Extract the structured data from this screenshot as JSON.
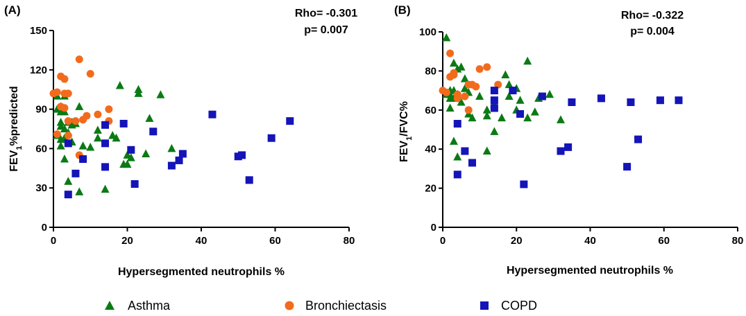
{
  "chart_data": [
    {
      "type": "scatter",
      "panel_label": "(A)",
      "annotation_rho": "Rho= -0.301",
      "annotation_p": "p= 0.007",
      "xlabel": "Hypersegmented neutrophils %",
      "ylabel_main": "FEV",
      "ylabel_sub": "1",
      "ylabel_rest": "%predicted",
      "xlim": [
        0,
        80
      ],
      "ylim": [
        0,
        150
      ],
      "xticks": [
        0,
        20,
        40,
        60,
        80
      ],
      "yticks": [
        0,
        30,
        60,
        90,
        120,
        150
      ],
      "series": [
        {
          "name": "Asthma",
          "points": [
            [
              1,
              70
            ],
            [
              1,
              90
            ],
            [
              1,
              100
            ],
            [
              2,
              62
            ],
            [
              2,
              67
            ],
            [
              2,
              77
            ],
            [
              2,
              80
            ],
            [
              2,
              88
            ],
            [
              2,
              92
            ],
            [
              3,
              52
            ],
            [
              3,
              68
            ],
            [
              3,
              75
            ],
            [
              3,
              88
            ],
            [
              3,
              100
            ],
            [
              4,
              35
            ],
            [
              4,
              72
            ],
            [
              4,
              80
            ],
            [
              5,
              65
            ],
            [
              5,
              78
            ],
            [
              5,
              80
            ],
            [
              6,
              79
            ],
            [
              7,
              27
            ],
            [
              7,
              92
            ],
            [
              8,
              62
            ],
            [
              10,
              61
            ],
            [
              12,
              68
            ],
            [
              12,
              74
            ],
            [
              14,
              29
            ],
            [
              16,
              70
            ],
            [
              17,
              68
            ],
            [
              18,
              108
            ],
            [
              19,
              48
            ],
            [
              20,
              48
            ],
            [
              20,
              55
            ],
            [
              21,
              53
            ],
            [
              23,
              102
            ],
            [
              23,
              105
            ],
            [
              25,
              56
            ],
            [
              26,
              83
            ],
            [
              29,
              101
            ],
            [
              32,
              60
            ]
          ]
        },
        {
          "name": "Bronchiectasis",
          "points": [
            [
              0,
              102
            ],
            [
              1,
              71
            ],
            [
              1,
              103
            ],
            [
              2,
              92
            ],
            [
              2,
              115
            ],
            [
              3,
              91
            ],
            [
              3,
              113
            ],
            [
              3,
              102
            ],
            [
              4,
              70
            ],
            [
              4,
              81
            ],
            [
              4,
              102
            ],
            [
              6,
              81
            ],
            [
              7,
              55
            ],
            [
              7,
              128
            ],
            [
              8,
              82
            ],
            [
              9,
              85
            ],
            [
              10,
              117
            ],
            [
              12,
              86
            ],
            [
              15,
              81
            ],
            [
              15,
              90
            ]
          ]
        },
        {
          "name": "COPD",
          "points": [
            [
              4,
              25
            ],
            [
              4,
              64
            ],
            [
              6,
              41
            ],
            [
              8,
              52
            ],
            [
              14,
              46
            ],
            [
              14,
              64
            ],
            [
              14,
              78
            ],
            [
              19,
              79
            ],
            [
              21,
              59
            ],
            [
              22,
              33
            ],
            [
              27,
              73
            ],
            [
              32,
              47
            ],
            [
              34,
              51
            ],
            [
              35,
              56
            ],
            [
              43,
              86
            ],
            [
              50,
              54
            ],
            [
              51,
              55
            ],
            [
              53,
              36
            ],
            [
              59,
              68
            ],
            [
              64,
              81
            ]
          ]
        }
      ]
    },
    {
      "type": "scatter",
      "panel_label": "(B)",
      "annotation_rho": "Rho= -0.322",
      "annotation_p": "p= 0.004",
      "xlabel": "Hypersegmented neutrophils %",
      "ylabel_main": "FEV",
      "ylabel_sub": "1",
      "ylabel_rest": "/FVC%",
      "xlim": [
        0,
        80
      ],
      "ylim": [
        0,
        100
      ],
      "xticks": [
        0,
        20,
        40,
        60,
        80
      ],
      "yticks": [
        0,
        20,
        40,
        60,
        80,
        100
      ],
      "series": [
        {
          "name": "Asthma",
          "points": [
            [
              1,
              97
            ],
            [
              1,
              68
            ],
            [
              2,
              61
            ],
            [
              2,
              70
            ],
            [
              2,
              66
            ],
            [
              3,
              84
            ],
            [
              3,
              66
            ],
            [
              3,
              44
            ],
            [
              4,
              36
            ],
            [
              4,
              81
            ],
            [
              4,
              68
            ],
            [
              5,
              82
            ],
            [
              5,
              64
            ],
            [
              6,
              76
            ],
            [
              6,
              71
            ],
            [
              7,
              58
            ],
            [
              7,
              69
            ],
            [
              8,
              56
            ],
            [
              10,
              67
            ],
            [
              12,
              39
            ],
            [
              12,
              57
            ],
            [
              12,
              60
            ],
            [
              14,
              49
            ],
            [
              14,
              63
            ],
            [
              16,
              56
            ],
            [
              17,
              78
            ],
            [
              18,
              73
            ],
            [
              18,
              67
            ],
            [
              20,
              71
            ],
            [
              20,
              60
            ],
            [
              21,
              65
            ],
            [
              23,
              56
            ],
            [
              23,
              85
            ],
            [
              25,
              59
            ],
            [
              26,
              66
            ],
            [
              29,
              68
            ],
            [
              32,
              55
            ],
            [
              3,
              70
            ],
            [
              2,
              68
            ]
          ]
        },
        {
          "name": "Bronchiectasis",
          "points": [
            [
              0,
              70
            ],
            [
              1,
              69
            ],
            [
              2,
              89
            ],
            [
              2,
              77
            ],
            [
              3,
              79
            ],
            [
              3,
              78
            ],
            [
              4,
              68
            ],
            [
              4,
              66
            ],
            [
              6,
              67
            ],
            [
              7,
              60
            ],
            [
              7,
              73
            ],
            [
              8,
              73
            ],
            [
              9,
              72
            ],
            [
              10,
              81
            ],
            [
              12,
              82
            ],
            [
              15,
              73
            ]
          ]
        },
        {
          "name": "COPD",
          "points": [
            [
              4,
              27
            ],
            [
              4,
              53
            ],
            [
              6,
              39
            ],
            [
              8,
              33
            ],
            [
              14,
              61
            ],
            [
              14,
              65
            ],
            [
              14,
              70
            ],
            [
              19,
              70
            ],
            [
              21,
              58
            ],
            [
              22,
              22
            ],
            [
              27,
              67
            ],
            [
              32,
              39
            ],
            [
              34,
              41
            ],
            [
              35,
              64
            ],
            [
              43,
              66
            ],
            [
              50,
              31
            ],
            [
              51,
              64
            ],
            [
              53,
              45
            ],
            [
              59,
              65
            ],
            [
              64,
              65
            ]
          ]
        }
      ]
    }
  ],
  "legend": [
    {
      "label": "Asthma",
      "marker": "triangle",
      "color": "#0a7a14"
    },
    {
      "label": "Bronchiectasis",
      "marker": "circle",
      "color": "#f26b1d"
    },
    {
      "label": "COPD",
      "marker": "square",
      "color": "#1414b8"
    }
  ]
}
